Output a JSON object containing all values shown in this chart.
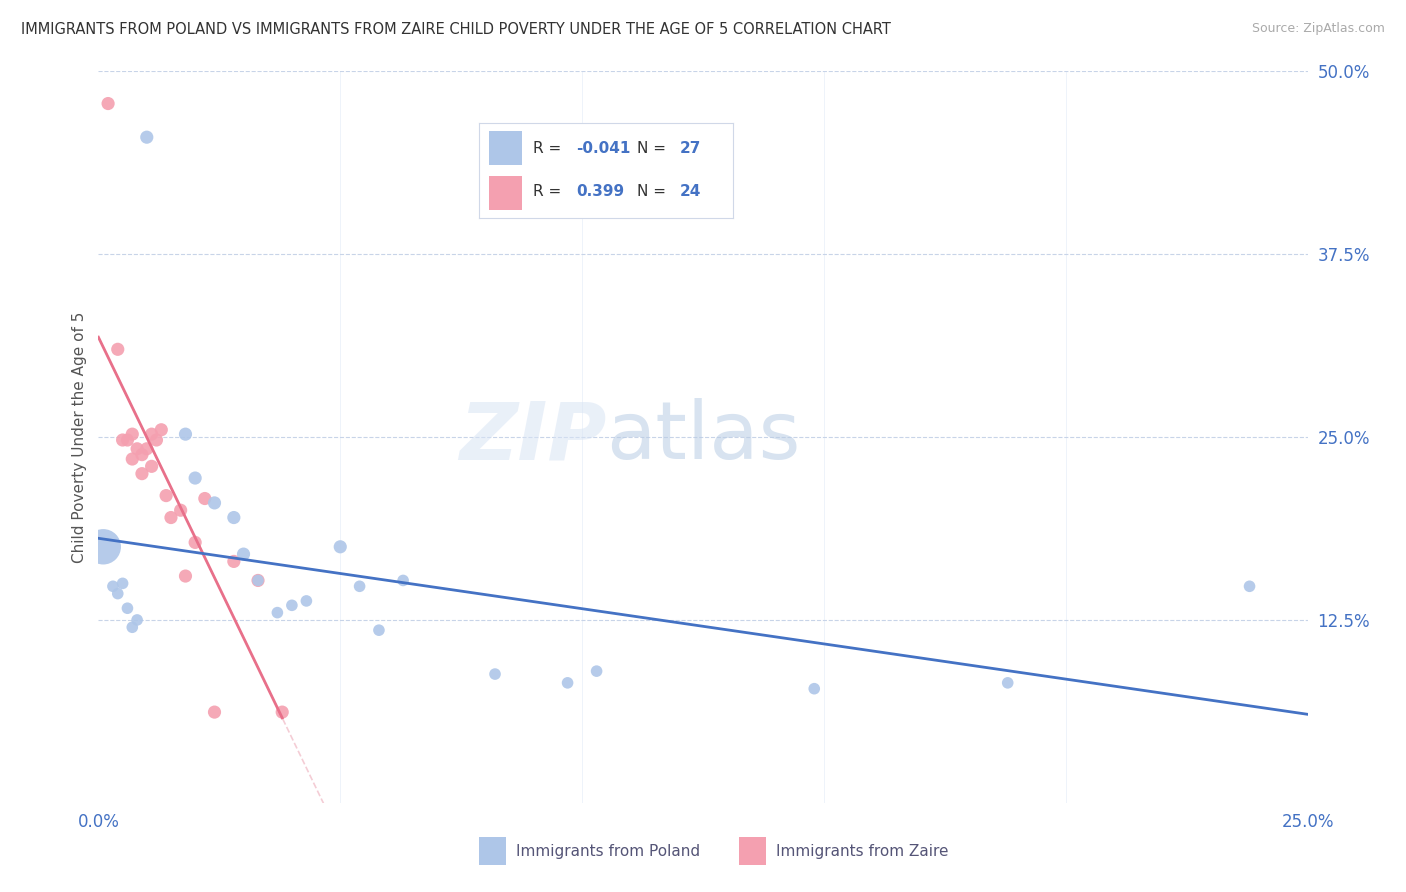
{
  "title": "IMMIGRANTS FROM POLAND VS IMMIGRANTS FROM ZAIRE CHILD POVERTY UNDER THE AGE OF 5 CORRELATION CHART",
  "source": "Source: ZipAtlas.com",
  "ylabel": "Child Poverty Under the Age of 5",
  "xlim": [
    0,
    0.25
  ],
  "ylim": [
    0,
    0.5
  ],
  "poland_color": "#aec6e8",
  "zaire_color": "#f4a0b0",
  "poland_line_color": "#4472c4",
  "zaire_line_color": "#e8708a",
  "background_color": "#ffffff",
  "watermark_zip": "ZIP",
  "watermark_atlas": "atlas",
  "poland_points": [
    [
      0.001,
      0.175
    ],
    [
      0.003,
      0.148
    ],
    [
      0.004,
      0.143
    ],
    [
      0.005,
      0.15
    ],
    [
      0.006,
      0.133
    ],
    [
      0.007,
      0.12
    ],
    [
      0.008,
      0.125
    ],
    [
      0.01,
      0.455
    ],
    [
      0.018,
      0.252
    ],
    [
      0.02,
      0.222
    ],
    [
      0.024,
      0.205
    ],
    [
      0.028,
      0.195
    ],
    [
      0.03,
      0.17
    ],
    [
      0.033,
      0.152
    ],
    [
      0.037,
      0.13
    ],
    [
      0.04,
      0.135
    ],
    [
      0.043,
      0.138
    ],
    [
      0.05,
      0.175
    ],
    [
      0.054,
      0.148
    ],
    [
      0.058,
      0.118
    ],
    [
      0.063,
      0.152
    ],
    [
      0.082,
      0.088
    ],
    [
      0.097,
      0.082
    ],
    [
      0.103,
      0.09
    ],
    [
      0.148,
      0.078
    ],
    [
      0.188,
      0.082
    ],
    [
      0.238,
      0.148
    ]
  ],
  "zaire_points": [
    [
      0.002,
      0.478
    ],
    [
      0.004,
      0.31
    ],
    [
      0.005,
      0.248
    ],
    [
      0.006,
      0.248
    ],
    [
      0.007,
      0.252
    ],
    [
      0.007,
      0.235
    ],
    [
      0.008,
      0.242
    ],
    [
      0.009,
      0.238
    ],
    [
      0.009,
      0.225
    ],
    [
      0.01,
      0.242
    ],
    [
      0.011,
      0.252
    ],
    [
      0.011,
      0.23
    ],
    [
      0.012,
      0.248
    ],
    [
      0.013,
      0.255
    ],
    [
      0.014,
      0.21
    ],
    [
      0.015,
      0.195
    ],
    [
      0.017,
      0.2
    ],
    [
      0.018,
      0.155
    ],
    [
      0.02,
      0.178
    ],
    [
      0.022,
      0.208
    ],
    [
      0.024,
      0.062
    ],
    [
      0.028,
      0.165
    ],
    [
      0.033,
      0.152
    ],
    [
      0.038,
      0.062
    ]
  ],
  "poland_bubble_sizes": [
    650,
    70,
    70,
    70,
    70,
    70,
    70,
    90,
    90,
    90,
    90,
    90,
    90,
    70,
    70,
    70,
    70,
    90,
    70,
    70,
    70,
    70,
    70,
    70,
    70,
    70,
    70
  ],
  "zaire_bubble_sizes": [
    90,
    90,
    90,
    90,
    90,
    90,
    90,
    90,
    90,
    90,
    90,
    90,
    90,
    90,
    90,
    90,
    90,
    90,
    90,
    90,
    90,
    90,
    90,
    90
  ],
  "legend_r_poland": "-0.041",
  "legend_n_poland": "27",
  "legend_r_zaire": "0.399",
  "legend_n_zaire": "24"
}
